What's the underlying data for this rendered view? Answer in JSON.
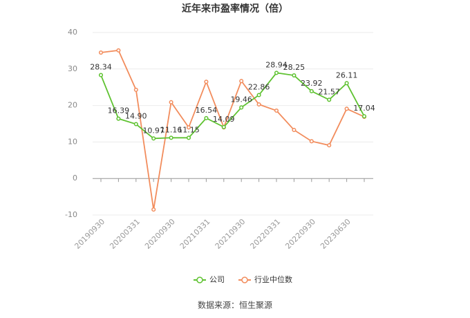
{
  "chart_data": {
    "type": "line",
    "title": "近年来市盈率情况（倍）",
    "source": "数据来源：恒生聚源",
    "categories": [
      "20190930",
      null,
      "20200331",
      null,
      "20200930",
      null,
      "20210331",
      null,
      "20210930",
      null,
      "20220331",
      null,
      "20220930",
      null,
      "20230630",
      null
    ],
    "series": [
      {
        "name": "公司",
        "color": "#5ec230",
        "values": [
          28.34,
          16.39,
          14.9,
          10.97,
          11.16,
          11.15,
          16.54,
          14.09,
          19.46,
          22.86,
          28.94,
          28.25,
          23.92,
          21.57,
          26.11,
          17.04
        ],
        "value_labels": [
          "28.34",
          "16.39",
          "14.90",
          "10.97",
          "11.16",
          "11.15",
          "16.54",
          "14.09",
          "19.46",
          "22.86",
          "28.94",
          "28.25",
          "23.92",
          "21.57",
          "26.11",
          "17.04"
        ]
      },
      {
        "name": "行业中位数",
        "color": "#f28c5c",
        "values": [
          34.5,
          35.1,
          24.3,
          -8.5,
          20.9,
          14.0,
          26.5,
          14.0,
          26.7,
          20.3,
          18.6,
          13.3,
          10.2,
          9.1,
          19.1,
          16.9
        ]
      }
    ],
    "ylim": [
      -10,
      40
    ],
    "yticks": [
      -10,
      0,
      10,
      20,
      30,
      40
    ],
    "grid": true,
    "legend": "bottom"
  }
}
